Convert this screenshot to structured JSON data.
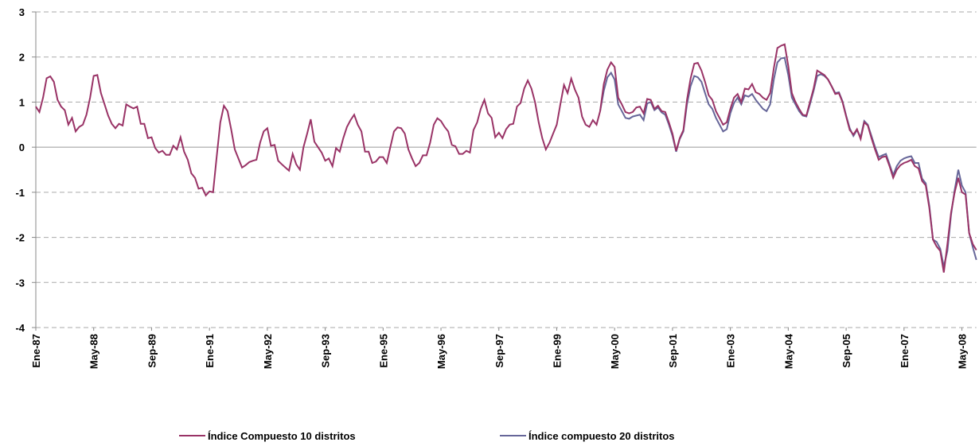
{
  "chart_data": {
    "type": "line",
    "categories": [
      "Ene-87",
      null,
      null,
      null,
      null,
      null,
      null,
      null,
      null,
      null,
      null,
      null,
      null,
      null,
      null,
      null,
      "May-88",
      null,
      null,
      null,
      null,
      null,
      null,
      null,
      null,
      null,
      null,
      null,
      null,
      null,
      null,
      null,
      "Sep-89",
      null,
      null,
      null,
      null,
      null,
      null,
      null,
      null,
      null,
      null,
      null,
      null,
      null,
      null,
      null,
      "Ene-91",
      null,
      null,
      null,
      null,
      null,
      null,
      null,
      null,
      null,
      null,
      null,
      null,
      null,
      null,
      null,
      "May-92",
      null,
      null,
      null,
      null,
      null,
      null,
      null,
      null,
      null,
      null,
      null,
      null,
      null,
      null,
      null,
      "Sep-93",
      null,
      null,
      null,
      null,
      null,
      null,
      null,
      null,
      null,
      null,
      null,
      null,
      null,
      null,
      null,
      "Ene-95",
      null,
      null,
      null,
      null,
      null,
      null,
      null,
      null,
      null,
      null,
      null,
      null,
      null,
      null,
      null,
      "May-96",
      null,
      null,
      null,
      null,
      null,
      null,
      null,
      null,
      null,
      null,
      null,
      null,
      null,
      null,
      null,
      "Sep-97",
      null,
      null,
      null,
      null,
      null,
      null,
      null,
      null,
      null,
      null,
      null,
      null,
      null,
      null,
      null,
      "Ene-99",
      null,
      null,
      null,
      null,
      null,
      null,
      null,
      null,
      null,
      null,
      null,
      null,
      null,
      null,
      null,
      "May-00",
      null,
      null,
      null,
      null,
      null,
      null,
      null,
      null,
      null,
      null,
      null,
      null,
      null,
      null,
      null,
      "Sep-01",
      null,
      null,
      null,
      null,
      null,
      null,
      null,
      null,
      null,
      null,
      null,
      null,
      null,
      null,
      null,
      "Ene-03",
      null,
      null,
      null,
      null,
      null,
      null,
      null,
      null,
      null,
      null,
      null,
      null,
      null,
      null,
      null,
      "May-04",
      null,
      null,
      null,
      null,
      null,
      null,
      null,
      null,
      null,
      null,
      null,
      null,
      null,
      null,
      null,
      "Sep-05",
      null,
      null,
      null,
      null,
      null,
      null,
      null,
      null,
      null,
      null,
      null,
      null,
      null,
      null,
      null,
      "Ene-07",
      null,
      null,
      null,
      null,
      null,
      null,
      null,
      null,
      null,
      null,
      null,
      null,
      null,
      null,
      null,
      "May-08",
      null,
      null,
      null,
      null
    ],
    "series": [
      {
        "name": "Índice Compuesto 10 distritos",
        "color": "#993366",
        "values": [
          0.9,
          0.78,
          1.1,
          1.53,
          1.57,
          1.45,
          1.05,
          0.9,
          0.82,
          0.5,
          0.65,
          0.35,
          0.45,
          0.5,
          0.72,
          1.1,
          1.58,
          1.6,
          1.2,
          0.95,
          0.7,
          0.52,
          0.42,
          0.52,
          0.48,
          0.95,
          0.9,
          0.86,
          0.9,
          0.52,
          0.52,
          0.2,
          0.22,
          -0.02,
          -0.12,
          -0.08,
          -0.17,
          -0.17,
          0.03,
          -0.05,
          0.22,
          -0.1,
          -0.28,
          -0.58,
          -0.68,
          -0.92,
          -0.9,
          -1.07,
          -0.98,
          -1.0,
          -0.2,
          0.55,
          0.92,
          0.8,
          0.4,
          -0.05,
          -0.25,
          -0.45,
          -0.4,
          -0.33,
          -0.3,
          -0.28,
          0.1,
          0.35,
          0.42,
          0.03,
          0.05,
          -0.3,
          -0.38,
          -0.45,
          -0.52,
          -0.15,
          -0.38,
          -0.5,
          0.0,
          0.3,
          0.62,
          0.12,
          0.0,
          -0.12,
          -0.3,
          -0.25,
          -0.42,
          -0.02,
          -0.1,
          0.2,
          0.45,
          0.6,
          0.72,
          0.5,
          0.35,
          -0.1,
          -0.1,
          -0.35,
          -0.32,
          -0.22,
          -0.22,
          -0.35,
          0.0,
          0.35,
          0.44,
          0.42,
          0.3,
          -0.05,
          -0.25,
          -0.42,
          -0.35,
          -0.18,
          -0.18,
          0.1,
          0.5,
          0.64,
          0.58,
          0.45,
          0.35,
          0.05,
          0.02,
          -0.15,
          -0.15,
          -0.08,
          -0.12,
          0.38,
          0.55,
          0.85,
          1.05,
          0.75,
          0.65,
          0.22,
          0.32,
          0.2,
          0.4,
          0.5,
          0.52,
          0.9,
          0.98,
          1.3,
          1.48,
          1.3,
          1.0,
          0.55,
          0.2,
          -0.05,
          0.1,
          0.3,
          0.5,
          0.95,
          1.38,
          1.2,
          1.52,
          1.28,
          1.1,
          0.68,
          0.5,
          0.45,
          0.6,
          0.5,
          0.8,
          1.4,
          1.72,
          1.88,
          1.78,
          1.1,
          0.95,
          0.78,
          0.75,
          0.78,
          0.88,
          0.9,
          0.75,
          1.07,
          1.05,
          0.85,
          0.92,
          0.8,
          0.78,
          0.55,
          0.3,
          -0.08,
          0.2,
          0.38,
          1.05,
          1.52,
          1.85,
          1.87,
          1.7,
          1.45,
          1.15,
          1.05,
          0.8,
          0.65,
          0.5,
          0.55,
          0.85,
          1.1,
          1.18,
          1.0,
          1.3,
          1.28,
          1.4,
          1.22,
          1.18,
          1.1,
          1.05,
          1.2,
          1.75,
          2.2,
          2.25,
          2.28,
          1.8,
          1.2,
          1.0,
          0.85,
          0.72,
          0.7,
          1.0,
          1.3,
          1.7,
          1.65,
          1.6,
          1.5,
          1.35,
          1.18,
          1.2,
          1.0,
          0.68,
          0.38,
          0.28,
          0.4,
          0.18,
          0.55,
          0.48,
          0.2,
          -0.05,
          -0.28,
          -0.22,
          -0.2,
          -0.42,
          -0.68,
          -0.5,
          -0.4,
          -0.35,
          -0.32,
          -0.28,
          -0.42,
          -0.47,
          -0.75,
          -0.85,
          -1.35,
          -2.05,
          -2.2,
          -2.3,
          -2.78,
          -2.15,
          -1.45,
          -1.0,
          -0.68,
          -1.0,
          -1.05,
          -1.9,
          -2.15,
          -2.28
        ]
      },
      {
        "name": "Índice compuesto 20 distritos",
        "color": "#666699",
        "values": [
          null,
          null,
          null,
          null,
          null,
          null,
          null,
          null,
          null,
          null,
          null,
          null,
          null,
          null,
          null,
          null,
          null,
          null,
          null,
          null,
          null,
          null,
          null,
          null,
          null,
          null,
          null,
          null,
          null,
          null,
          null,
          null,
          null,
          null,
          null,
          null,
          null,
          null,
          null,
          null,
          null,
          null,
          null,
          null,
          null,
          null,
          null,
          null,
          null,
          null,
          null,
          null,
          null,
          null,
          null,
          null,
          null,
          null,
          null,
          null,
          null,
          null,
          null,
          null,
          null,
          null,
          null,
          null,
          null,
          null,
          null,
          null,
          null,
          null,
          null,
          null,
          null,
          null,
          null,
          null,
          null,
          null,
          null,
          null,
          null,
          null,
          null,
          null,
          null,
          null,
          null,
          null,
          null,
          null,
          null,
          null,
          null,
          null,
          null,
          null,
          null,
          null,
          null,
          null,
          null,
          null,
          null,
          null,
          null,
          null,
          null,
          null,
          null,
          null,
          null,
          null,
          null,
          null,
          null,
          null,
          null,
          null,
          null,
          null,
          null,
          null,
          null,
          null,
          null,
          null,
          null,
          null,
          null,
          null,
          null,
          null,
          null,
          null,
          null,
          null,
          null,
          null,
          null,
          null,
          null,
          null,
          null,
          null,
          null,
          null,
          null,
          null,
          null,
          null,
          null,
          null,
          0.8,
          1.25,
          1.55,
          1.65,
          1.5,
          0.95,
          0.8,
          0.65,
          0.63,
          0.68,
          0.7,
          0.72,
          0.6,
          0.97,
          1.0,
          0.82,
          0.88,
          0.77,
          0.72,
          0.5,
          0.25,
          -0.1,
          0.18,
          0.35,
          0.95,
          1.35,
          1.58,
          1.55,
          1.45,
          1.2,
          0.95,
          0.85,
          0.65,
          0.5,
          0.35,
          0.4,
          0.75,
          0.98,
          1.1,
          0.95,
          1.15,
          1.12,
          1.18,
          1.05,
          0.95,
          0.85,
          0.8,
          0.95,
          1.5,
          1.88,
          1.97,
          1.98,
          1.6,
          1.1,
          0.95,
          0.8,
          0.7,
          0.68,
          0.95,
          1.25,
          1.58,
          1.62,
          1.58,
          1.5,
          1.35,
          1.2,
          1.22,
          1.02,
          0.7,
          0.42,
          0.25,
          0.38,
          0.22,
          0.58,
          0.5,
          0.25,
          0.0,
          -0.22,
          -0.18,
          -0.15,
          -0.38,
          -0.62,
          -0.42,
          -0.3,
          -0.25,
          -0.22,
          -0.2,
          -0.35,
          -0.35,
          -0.7,
          -0.8,
          -1.3,
          -2.05,
          -2.1,
          -2.25,
          -2.65,
          -2.3,
          -1.5,
          -0.95,
          -0.5,
          -0.85,
          -1.0,
          -1.9,
          -2.22,
          -2.5
        ]
      }
    ],
    "ylim": [
      -4,
      3
    ],
    "yticks": [
      -4,
      -3,
      -2,
      -1,
      0,
      1,
      2,
      3
    ],
    "grid": true,
    "legend": "bottom"
  }
}
